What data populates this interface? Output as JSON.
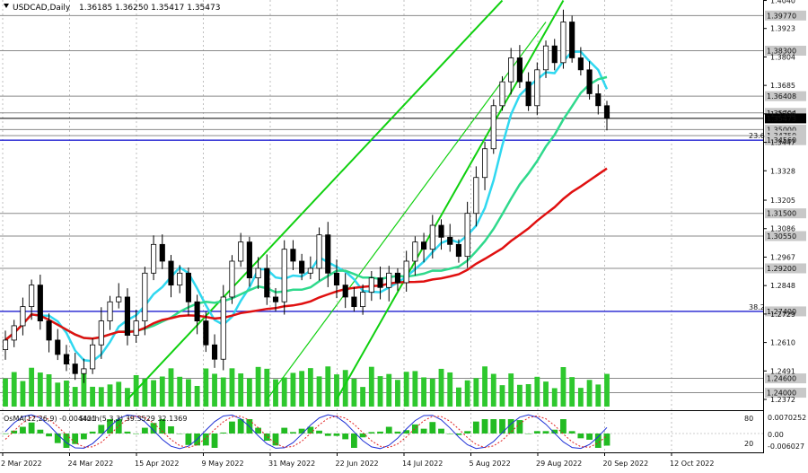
{
  "header": {
    "symbol": "USDCAD,Daily",
    "ohlc": "1.36185 1.36250 1.35417 1.35473"
  },
  "indicator": {
    "osma_label": "OsMA(12,26,9) -0.004421",
    "stoch_label": "Stoch(5,3,3) 39.3529 32.1369",
    "scale_top": "0.0070252",
    "scale_zero": "0.00",
    "scale_bottom": "-0.006027",
    "stoch_80": "80",
    "stoch_20": "20"
  },
  "chart_data": {
    "type": "candlestick",
    "instrument": "USDCAD",
    "timeframe": "Daily",
    "last_ohlc": {
      "open": 1.36185,
      "high": 1.3625,
      "low": 1.35417,
      "close": 1.35473
    },
    "ylim": [
      1.2327,
      1.4042
    ],
    "y_ticks": [
      1.404,
      1.3923,
      1.3804,
      1.3685,
      1.3566,
      1.3447,
      1.3328,
      1.3205,
      1.3086,
      1.2967,
      1.2848,
      1.2729,
      1.261,
      1.2491,
      1.2372
    ],
    "x_ticks": [
      "2 Mar 2022",
      "24 Mar 2022",
      "15 Apr 2022",
      "9 May 2022",
      "31 May 2022",
      "22 Jun 2022",
      "14 Jul 2022",
      "5 Aug 2022",
      "29 Aug 2022",
      "20 Sep 2022",
      "12 Oct 2022"
    ],
    "horizontal_levels": [
      {
        "price": 1.3977,
        "label": "1.39770"
      },
      {
        "price": 1.383,
        "label": "1.38300"
      },
      {
        "price": 1.364,
        "label": "1.36408"
      },
      {
        "price": 1.357,
        "label": "1.35704"
      },
      {
        "price": 1.3547,
        "label": "1.35473"
      },
      {
        "price": 1.35,
        "label": "1.35000"
      },
      {
        "price": 1.3475,
        "label": "1.34750"
      },
      {
        "price": 1.3456,
        "label": "1.34560"
      },
      {
        "price": 1.315,
        "label": "1.31500"
      },
      {
        "price": 1.3055,
        "label": "1.30550"
      },
      {
        "price": 1.292,
        "label": "1.29200"
      },
      {
        "price": 1.274,
        "label": "1.27400"
      },
      {
        "price": 1.246,
        "label": "1.24600"
      },
      {
        "price": 1.24,
        "label": "1.24000"
      }
    ],
    "fib_labels": [
      {
        "price": 1.3456,
        "label": "23.6"
      },
      {
        "price": 1.274,
        "label": "38.2"
      }
    ],
    "closes": [
      1.262,
      1.268,
      1.276,
      1.285,
      1.27,
      1.262,
      1.256,
      1.252,
      1.248,
      1.25,
      1.26,
      1.27,
      1.278,
      1.28,
      1.264,
      1.27,
      1.29,
      1.302,
      1.295,
      1.285,
      1.29,
      1.278,
      1.27,
      1.26,
      1.254,
      1.28,
      1.295,
      1.303,
      1.288,
      1.292,
      1.28,
      1.278,
      1.3,
      1.295,
      1.29,
      1.292,
      1.306,
      1.29,
      1.285,
      1.28,
      1.276,
      1.282,
      1.288,
      1.284,
      1.29,
      1.286,
      1.295,
      1.303,
      1.3,
      1.31,
      1.305,
      1.302,
      1.297,
      1.315,
      1.33,
      1.342,
      1.36,
      1.37,
      1.38,
      1.37,
      1.36,
      1.375,
      1.385,
      1.378,
      1.395,
      1.38,
      1.375,
      1.365,
      1.36,
      1.3547
    ]
  }
}
